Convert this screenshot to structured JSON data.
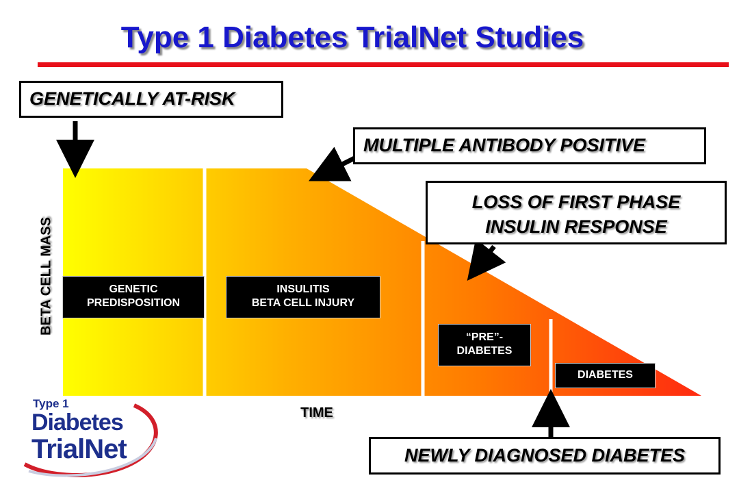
{
  "title": "Type 1 Diabetes TrialNet Studies",
  "callouts": {
    "genetically_at_risk": "GENETICALLY AT-RISK",
    "multiple_antibody_positive": "MULTIPLE ANTIBODY POSITIVE",
    "loss_first_phase_line1": "LOSS OF FIRST PHASE",
    "loss_first_phase_line2": "INSULIN RESPONSE",
    "newly_diagnosed": "NEWLY DIAGNOSED DIABETES"
  },
  "axes": {
    "y_label": "BETA CELL MASS",
    "x_label": "TIME"
  },
  "stages": {
    "genetic_line1": "GENETIC",
    "genetic_line2": "PREDISPOSITION",
    "insulitis_line1": "INSULITIS",
    "insulitis_line2": "BETA CELL INJURY",
    "prediabetes_line1": "“PRE”-",
    "prediabetes_line2": "DIABETES",
    "diabetes": "DIABETES"
  },
  "logo": {
    "line1": "Type 1",
    "line2": "Diabetes",
    "line3": "TrialNet"
  },
  "colors": {
    "title_blue": "#1818cc",
    "rule_red": "#e8101a",
    "gradient_start": "#ffff00",
    "gradient_end": "#ff2a10",
    "logo_blue": "#1d2f8c",
    "logo_red": "#d21f2a"
  }
}
